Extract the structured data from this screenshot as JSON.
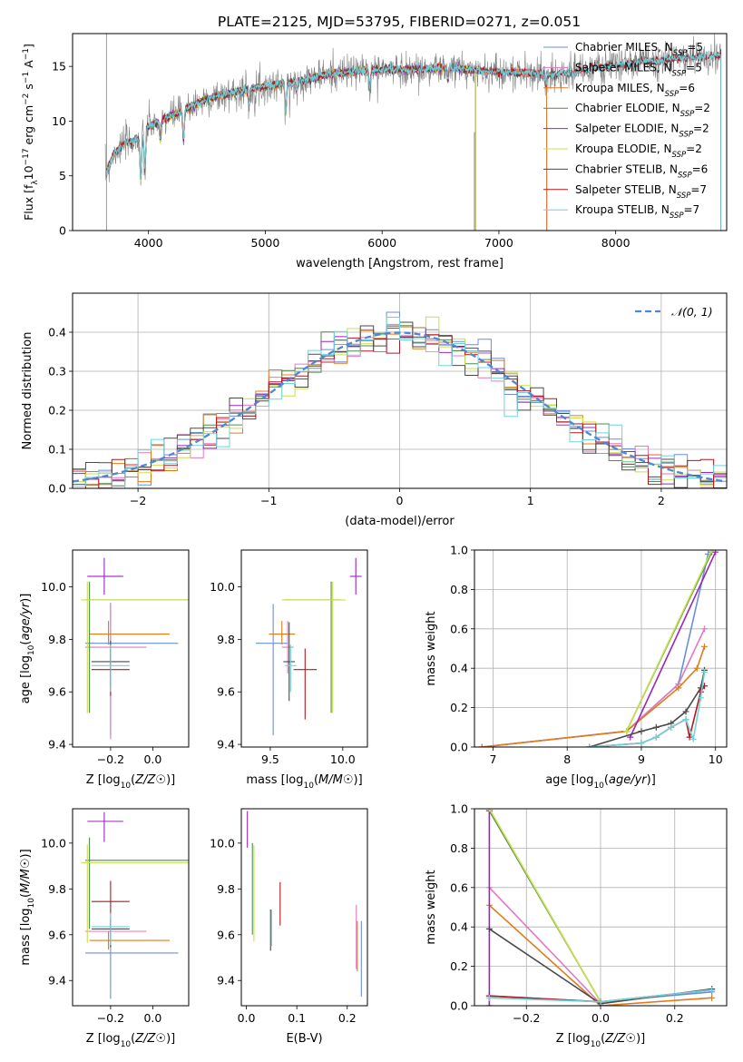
{
  "title": "PLATE=2125, MJD=53795, FIBERID=0271, z=0.051",
  "colors": {
    "Chabrier MILES": "#6a8fd8",
    "Salpeter MILES": "#e377c2",
    "Kroupa MILES": "#e07b1a",
    "Chabrier ELODIE": "#4f8a4f",
    "Salpeter ELODIE": "#9a27b8",
    "Kroupa ELODIE": "#c8e04a",
    "Chabrier STELIB": "#4a4a4a",
    "Salpeter STELIB": "#b3181f",
    "Kroupa STELIB": "#6fd3dc"
  },
  "chart_data": [
    {
      "id": "spectrum",
      "type": "line",
      "xlabel": "wavelength [Angstrom, rest frame]",
      "ylabel": "Flux [f_λ10^-17 erg cm^-2 s^-1 A^-1]",
      "xlim": [
        3350,
        8950
      ],
      "ylim": [
        0,
        18
      ],
      "xticks": [
        4000,
        5000,
        6000,
        7000,
        8000
      ],
      "yticks": [
        0,
        5,
        10,
        15
      ],
      "data_color": "#808080",
      "continuum": [
        [
          3630,
          5.0
        ],
        [
          3700,
          7.0
        ],
        [
          3800,
          8.0
        ],
        [
          3900,
          8.3
        ],
        [
          4000,
          9.5
        ],
        [
          4200,
          10.5
        ],
        [
          4500,
          12.0
        ],
        [
          4800,
          12.8
        ],
        [
          5000,
          13.2
        ],
        [
          5200,
          13.5
        ],
        [
          5500,
          14.2
        ],
        [
          5800,
          14.6
        ],
        [
          6000,
          14.7
        ],
        [
          6300,
          14.7
        ],
        [
          6600,
          14.9
        ],
        [
          6800,
          14.6
        ],
        [
          7000,
          14.5
        ],
        [
          7200,
          14.4
        ],
        [
          7400,
          14.3
        ],
        [
          7600,
          14.4
        ],
        [
          7800,
          14.8
        ],
        [
          8000,
          15.1
        ],
        [
          8300,
          15.5
        ],
        [
          8600,
          15.8
        ],
        [
          8900,
          16.0
        ]
      ],
      "absorption": [
        [
          3934,
          4.5
        ],
        [
          3969,
          4.0
        ],
        [
          4102,
          2.0
        ],
        [
          4300,
          3.0
        ],
        [
          4861,
          1.5
        ],
        [
          5175,
          3.0
        ],
        [
          5270,
          1.0
        ],
        [
          5895,
          1.8
        ],
        [
          6563,
          1.2
        ],
        [
          7400,
          1.0
        ]
      ],
      "legend": [
        {
          "model": "Chabrier MILES",
          "n": 5
        },
        {
          "model": "Salpeter MILES",
          "n": 5
        },
        {
          "model": "Kroupa MILES",
          "n": 6
        },
        {
          "model": "Chabrier ELODIE",
          "n": 2
        },
        {
          "model": "Salpeter ELODIE",
          "n": 2
        },
        {
          "model": "Kroupa ELODIE",
          "n": 2
        },
        {
          "model": "Chabrier STELIB",
          "n": 6
        },
        {
          "model": "Salpeter STELIB",
          "n": 7
        },
        {
          "model": "Kroupa STELIB",
          "n": 7
        }
      ],
      "legend_prefix": "N",
      "legend_sub": "SSP",
      "legend_placement": "right"
    },
    {
      "id": "residuals",
      "type": "step",
      "xlabel": "(data-model)/error",
      "ylabel": "Normed distribution",
      "xlim": [
        -2.5,
        2.5
      ],
      "ylim": [
        0,
        0.5
      ],
      "xticks": [
        -2,
        -1,
        0,
        1,
        2
      ],
      "yticks": [
        0.0,
        0.1,
        0.2,
        0.3,
        0.4
      ],
      "bin_width": 0.1,
      "normal_label": "𝒩(0, 1)",
      "legend_placement": "top-right",
      "grid": true
    },
    {
      "id": "age_vs_Z",
      "type": "errorbar",
      "xlabel": "Z [log10(Z/Z☉)]",
      "ylabel": "age [log10(age/yr)]",
      "xlim": [
        -0.38,
        0.17
      ],
      "ylim": [
        9.39,
        10.14
      ],
      "xticks": [
        -0.2,
        0.0
      ],
      "yticks": [
        9.4,
        9.6,
        9.8,
        10.0
      ],
      "points": [
        {
          "model": "Chabrier MILES",
          "x": -0.2,
          "xerr": [
            0.12,
            0.32
          ],
          "y": 9.785,
          "yerr": [
            0.35,
            0.15
          ]
        },
        {
          "model": "Salpeter MILES",
          "x": -0.2,
          "xerr": [
            0.12,
            0.17
          ],
          "y": 9.77,
          "yerr": [
            0.35,
            0.17
          ]
        },
        {
          "model": "Kroupa MILES",
          "x": -0.21,
          "xerr": [
            0.09,
            0.29
          ],
          "y": 9.82,
          "yerr": [
            0.04,
            0.05
          ]
        },
        {
          "model": "Chabrier ELODIE",
          "x": -0.3,
          "xerr": [
            0.02,
            0.52
          ],
          "y": 9.95,
          "yerr": [
            0.43,
            0.07
          ]
        },
        {
          "model": "Salpeter ELODIE",
          "x": -0.23,
          "xerr": [
            0.08,
            0.09
          ],
          "y": 10.04,
          "yerr": [
            0.07,
            0.07
          ]
        },
        {
          "model": "Kroupa ELODIE",
          "x": -0.31,
          "xerr": [
            0.03,
            0.53
          ],
          "y": 9.95,
          "yerr": [
            0.43,
            0.07
          ]
        },
        {
          "model": "Chabrier STELIB",
          "x": -0.2,
          "xerr": [
            0.09,
            0.09
          ],
          "y": 9.715,
          "yerr": [
            0.1,
            0.08
          ]
        },
        {
          "model": "Salpeter STELIB",
          "x": -0.2,
          "xerr": [
            0.09,
            0.09
          ],
          "y": 9.685,
          "yerr": [
            0.1,
            0.08
          ]
        },
        {
          "model": "Kroupa STELIB",
          "x": -0.2,
          "xerr": [
            0.09,
            0.09
          ],
          "y": 9.7,
          "yerr": [
            0.1,
            0.08
          ]
        }
      ]
    },
    {
      "id": "age_vs_mass",
      "type": "errorbar",
      "xlabel": "mass [log10(M/M☉)]",
      "ylabel": "",
      "xlim": [
        9.3,
        10.17
      ],
      "ylim": [
        9.39,
        10.14
      ],
      "xticks": [
        9.5,
        10.0
      ],
      "yticks": [
        9.4,
        9.6,
        9.8,
        10.0
      ],
      "points": [
        {
          "model": "Chabrier MILES",
          "x": 9.52,
          "xerr": [
            0.12,
            0.1
          ],
          "y": 9.785,
          "yerr": [
            0.35,
            0.15
          ]
        },
        {
          "model": "Salpeter MILES",
          "x": 9.62,
          "xerr": [
            0.04,
            0.04
          ],
          "y": 9.77,
          "yerr": [
            0.1,
            0.1
          ]
        },
        {
          "model": "Kroupa MILES",
          "x": 9.58,
          "xerr": [
            0.09,
            0.09
          ],
          "y": 9.82,
          "yerr": [
            0.04,
            0.05
          ]
        },
        {
          "model": "Chabrier ELODIE",
          "x": 9.92,
          "xerr": [
            0.32,
            0.06
          ],
          "y": 9.95,
          "yerr": [
            0.43,
            0.07
          ]
        },
        {
          "model": "Salpeter ELODIE",
          "x": 10.09,
          "xerr": [
            0.04,
            0.04
          ],
          "y": 10.04,
          "yerr": [
            0.07,
            0.07
          ]
        },
        {
          "model": "Kroupa ELODIE",
          "x": 9.93,
          "xerr": [
            0.35,
            0.09
          ],
          "y": 9.95,
          "yerr": [
            0.43,
            0.07
          ]
        },
        {
          "model": "Chabrier STELIB",
          "x": 9.63,
          "xerr": [
            0.04,
            0.04
          ],
          "y": 9.715,
          "yerr": [
            0.15,
            0.15
          ]
        },
        {
          "model": "Salpeter STELIB",
          "x": 9.74,
          "xerr": [
            0.08,
            0.08
          ],
          "y": 9.685,
          "yerr": [
            0.19,
            0.08
          ]
        },
        {
          "model": "Kroupa STELIB",
          "x": 9.64,
          "xerr": [
            0.04,
            0.04
          ],
          "y": 9.7,
          "yerr": [
            0.1,
            0.08
          ]
        }
      ]
    },
    {
      "id": "age_massweight",
      "type": "line",
      "xlabel": "age [log10(age/yr)]",
      "ylabel": "mass weight",
      "xlim": [
        6.75,
        10.15
      ],
      "ylim": [
        0,
        1
      ],
      "xticks": [
        7,
        8,
        9,
        10
      ],
      "yticks": [
        0.0,
        0.2,
        0.4,
        0.6,
        0.8,
        1.0
      ],
      "grid": true,
      "series": [
        {
          "model": "Chabrier MILES",
          "x": [
            6.85,
            8.8,
            9.5,
            9.9
          ],
          "y": [
            0.0,
            0.08,
            0.32,
            0.98
          ]
        },
        {
          "model": "Salpeter MILES",
          "x": [
            6.85,
            8.8,
            9.5,
            9.85
          ],
          "y": [
            0.0,
            0.08,
            0.32,
            0.6
          ]
        },
        {
          "model": "Kroupa MILES",
          "x": [
            6.85,
            8.8,
            9.5,
            9.75,
            9.85
          ],
          "y": [
            0.0,
            0.08,
            0.3,
            0.4,
            0.51
          ]
        },
        {
          "model": "Chabrier ELODIE",
          "x": [
            8.8,
            9.95
          ],
          "y": [
            0.08,
            0.99
          ]
        },
        {
          "model": "Salpeter ELODIE",
          "x": [
            8.85,
            10.0
          ],
          "y": [
            0.05,
            0.99
          ]
        },
        {
          "model": "Kroupa ELODIE",
          "x": [
            8.8,
            9.95
          ],
          "y": [
            0.08,
            1.0
          ]
        },
        {
          "model": "Chabrier STELIB",
          "x": [
            8.3,
            9.0,
            9.2,
            9.4,
            9.6,
            9.8,
            9.85
          ],
          "y": [
            0.0,
            0.08,
            0.1,
            0.12,
            0.18,
            0.3,
            0.39
          ]
        },
        {
          "model": "Salpeter STELIB",
          "x": [
            8.3,
            9.0,
            9.2,
            9.4,
            9.6,
            9.65,
            9.8,
            9.85
          ],
          "y": [
            0.0,
            0.02,
            0.05,
            0.1,
            0.14,
            0.05,
            0.28,
            0.31
          ]
        },
        {
          "model": "Kroupa STELIB",
          "x": [
            8.3,
            9.0,
            9.2,
            9.4,
            9.6,
            9.7,
            9.8,
            9.85
          ],
          "y": [
            0.0,
            0.02,
            0.05,
            0.1,
            0.14,
            0.04,
            0.25,
            0.38
          ]
        }
      ]
    },
    {
      "id": "mass_vs_Z",
      "type": "errorbar",
      "xlabel": "Z [log10(Z/Z☉)]",
      "ylabel": "mass [log10(M/M☉)]",
      "xlim": [
        -0.38,
        0.17
      ],
      "ylim": [
        9.29,
        10.15
      ],
      "xticks": [
        -0.2,
        0.0
      ],
      "yticks": [
        9.4,
        9.6,
        9.8,
        10.0
      ],
      "points": [
        {
          "model": "Chabrier MILES",
          "x": -0.2,
          "xerr": [
            0.12,
            0.32
          ],
          "y": 9.52,
          "yerr": [
            0.2,
            0.14
          ]
        },
        {
          "model": "Salpeter MILES",
          "x": -0.2,
          "xerr": [
            0.12,
            0.17
          ],
          "y": 9.615,
          "yerr": [
            0.08,
            0.06
          ]
        },
        {
          "model": "Kroupa MILES",
          "x": -0.21,
          "xerr": [
            0.09,
            0.29
          ],
          "y": 9.575,
          "yerr": [
            0.04,
            0.04
          ]
        },
        {
          "model": "Chabrier ELODIE",
          "x": -0.3,
          "xerr": [
            0.02,
            0.52
          ],
          "y": 9.925,
          "yerr": [
            0.3,
            0.1
          ]
        },
        {
          "model": "Salpeter ELODIE",
          "x": -0.23,
          "xerr": [
            0.08,
            0.09
          ],
          "y": 10.095,
          "yerr": [
            0.09,
            0.04
          ]
        },
        {
          "model": "Kroupa ELODIE",
          "x": -0.31,
          "xerr": [
            0.03,
            0.53
          ],
          "y": 9.915,
          "yerr": [
            0.35,
            0.08
          ]
        },
        {
          "model": "Chabrier STELIB",
          "x": -0.2,
          "xerr": [
            0.09,
            0.09
          ],
          "y": 9.625,
          "yerr": [
            0.08,
            0.04
          ]
        },
        {
          "model": "Salpeter STELIB",
          "x": -0.2,
          "xerr": [
            0.09,
            0.09
          ],
          "y": 9.745,
          "yerr": [
            0.1,
            0.09
          ]
        },
        {
          "model": "Kroupa STELIB",
          "x": -0.2,
          "xerr": [
            0.09,
            0.09
          ],
          "y": 9.635,
          "yerr": [
            0.08,
            0.06
          ]
        }
      ]
    },
    {
      "id": "mass_vs_ebv",
      "type": "errorbar",
      "xlabel": "E(B-V)",
      "ylabel": "",
      "xlim": [
        -0.01,
        0.24
      ],
      "ylim": [
        9.29,
        10.15
      ],
      "xticks": [
        0.0,
        0.1,
        0.2
      ],
      "yticks": [
        9.4,
        9.6,
        9.8,
        10.0
      ],
      "points": [
        {
          "model": "Chabrier MILES",
          "x": 0.228,
          "xerr": [
            0,
            0
          ],
          "y": 9.5,
          "yerr": [
            0.17,
            0.16
          ]
        },
        {
          "model": "Salpeter MILES",
          "x": 0.218,
          "xerr": [
            0,
            0
          ],
          "y": 9.6,
          "yerr": [
            0.15,
            0.13
          ]
        },
        {
          "model": "Kroupa MILES",
          "x": 0.22,
          "xerr": [
            0,
            0
          ],
          "y": 9.55,
          "yerr": [
            0.11,
            0.11
          ]
        },
        {
          "model": "Chabrier ELODIE",
          "x": 0.012,
          "xerr": [
            0,
            0
          ],
          "y": 9.8,
          "yerr": [
            0.2,
            0.2
          ]
        },
        {
          "model": "Salpeter ELODIE",
          "x": 0.002,
          "xerr": [
            0,
            0
          ],
          "y": 10.06,
          "yerr": [
            0.08,
            0.08
          ]
        },
        {
          "model": "Kroupa ELODIE",
          "x": 0.015,
          "xerr": [
            0,
            0
          ],
          "y": 9.75,
          "yerr": [
            0.18,
            0.24
          ]
        },
        {
          "model": "Chabrier STELIB",
          "x": 0.048,
          "xerr": [
            0,
            0
          ],
          "y": 9.6,
          "yerr": [
            0.07,
            0.11
          ]
        },
        {
          "model": "Salpeter STELIB",
          "x": 0.067,
          "xerr": [
            0,
            0
          ],
          "y": 9.73,
          "yerr": [
            0.09,
            0.1
          ]
        },
        {
          "model": "Kroupa STELIB",
          "x": 0.05,
          "xerr": [
            0,
            0
          ],
          "y": 9.62,
          "yerr": [
            0.07,
            0.09
          ]
        }
      ]
    },
    {
      "id": "Z_massweight",
      "type": "line",
      "xlabel": "Z [log10(Z/Z☉)]",
      "ylabel": "mass weight",
      "xlim": [
        -0.34,
        0.34
      ],
      "ylim": [
        0,
        1
      ],
      "xticks": [
        -0.2,
        0.0,
        0.2
      ],
      "yticks": [
        0.0,
        0.2,
        0.4,
        0.6,
        0.8,
        1.0
      ],
      "grid": true,
      "series": [
        {
          "model": "Chabrier MILES",
          "x": [
            -0.3,
            0.0,
            0.3
          ],
          "y": [
            0.05,
            0.02,
            0.07
          ]
        },
        {
          "model": "Salpeter MILES",
          "x": [
            -0.3,
            0.0
          ],
          "y": [
            0.6,
            0.01
          ]
        },
        {
          "model": "Kroupa MILES",
          "x": [
            -0.3,
            0.0,
            0.3
          ],
          "y": [
            0.51,
            0.0,
            0.04
          ]
        },
        {
          "model": "Chabrier ELODIE",
          "x": [
            -0.3,
            0.0
          ],
          "y": [
            0.99,
            0.02
          ]
        },
        {
          "model": "Salpeter ELODIE",
          "x": [
            -0.3,
            -0.3
          ],
          "y": [
            0.0,
            0.99
          ]
        },
        {
          "model": "Kroupa ELODIE",
          "x": [
            -0.3,
            0.0
          ],
          "y": [
            1.0,
            0.02
          ]
        },
        {
          "model": "Chabrier STELIB",
          "x": [
            -0.3,
            0.0,
            0.3
          ],
          "y": [
            0.39,
            0.01,
            0.085
          ]
        },
        {
          "model": "Salpeter STELIB",
          "x": [
            -0.3,
            0.0,
            0.3
          ],
          "y": [
            0.05,
            0.02,
            0.08
          ]
        },
        {
          "model": "Kroupa STELIB",
          "x": [
            -0.3,
            0.0,
            0.3
          ],
          "y": [
            0.04,
            0.02,
            0.08
          ]
        }
      ]
    }
  ]
}
